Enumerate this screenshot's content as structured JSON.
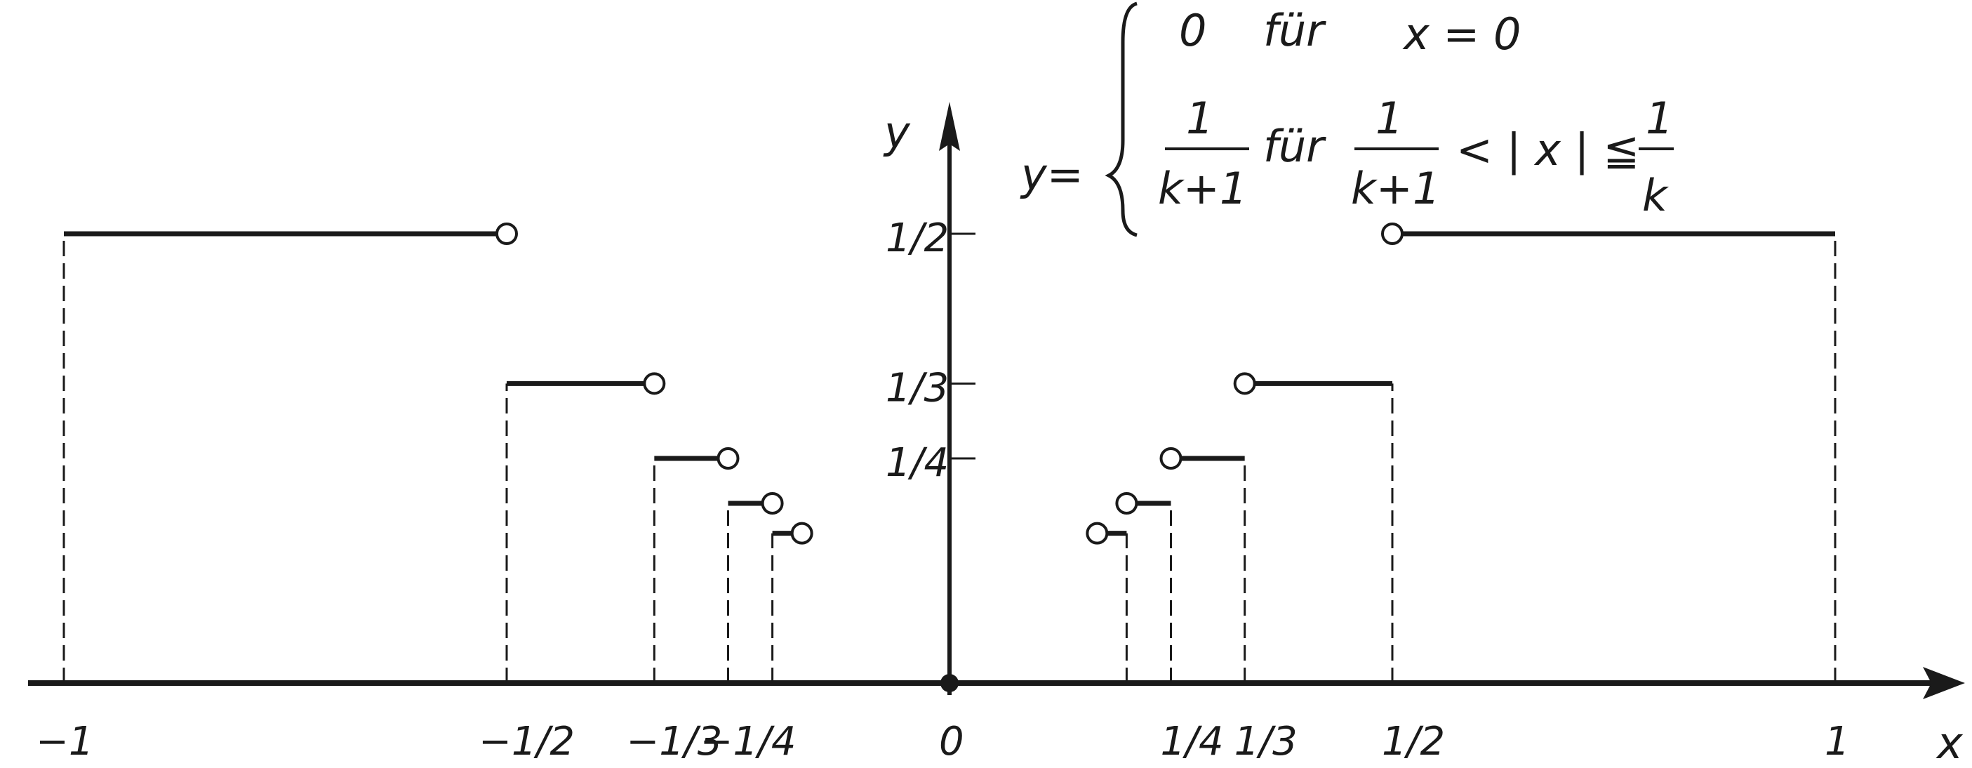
{
  "chart_data": {
    "type": "line",
    "subtype": "step-function",
    "xlabel": "x",
    "ylabel": "y",
    "xlim": [
      -1,
      1
    ],
    "ylim": [
      0,
      0.5
    ],
    "grid": false,
    "x_tick_labels": [
      {
        "value": -1,
        "label": "−1"
      },
      {
        "value": -0.5,
        "label": "−1/2"
      },
      {
        "value": -0.3333,
        "label": "−1/3"
      },
      {
        "value": -0.25,
        "label": "−1/4"
      },
      {
        "value": 0,
        "label": "0"
      },
      {
        "value": 0.25,
        "label": "1/4"
      },
      {
        "value": 0.3333,
        "label": "1/3"
      },
      {
        "value": 0.5,
        "label": "1/2"
      },
      {
        "value": 1,
        "label": "1"
      }
    ],
    "y_tick_labels": [
      {
        "value": 0.5,
        "label": "1/2"
      },
      {
        "value": 0.3333,
        "label": "1/3"
      },
      {
        "value": 0.25,
        "label": "1/4"
      }
    ],
    "steps_k": [
      1,
      2,
      3,
      4,
      5
    ],
    "origin_point": {
      "x": 0,
      "y": 0,
      "filled": true
    },
    "formula": {
      "lhs": "y=",
      "case1": {
        "value": "0",
        "word": "für",
        "condition": "x = 0"
      },
      "case2": {
        "num": "1",
        "den": "k+1",
        "word": "für",
        "cond_num": "1",
        "cond_den": "k+1",
        "cond_mid": "< | x | ≦",
        "cond_num2": "1",
        "cond_den2": "k"
      }
    },
    "colors": {
      "ink": "#1a1a1a",
      "background": "#ffffff"
    }
  }
}
